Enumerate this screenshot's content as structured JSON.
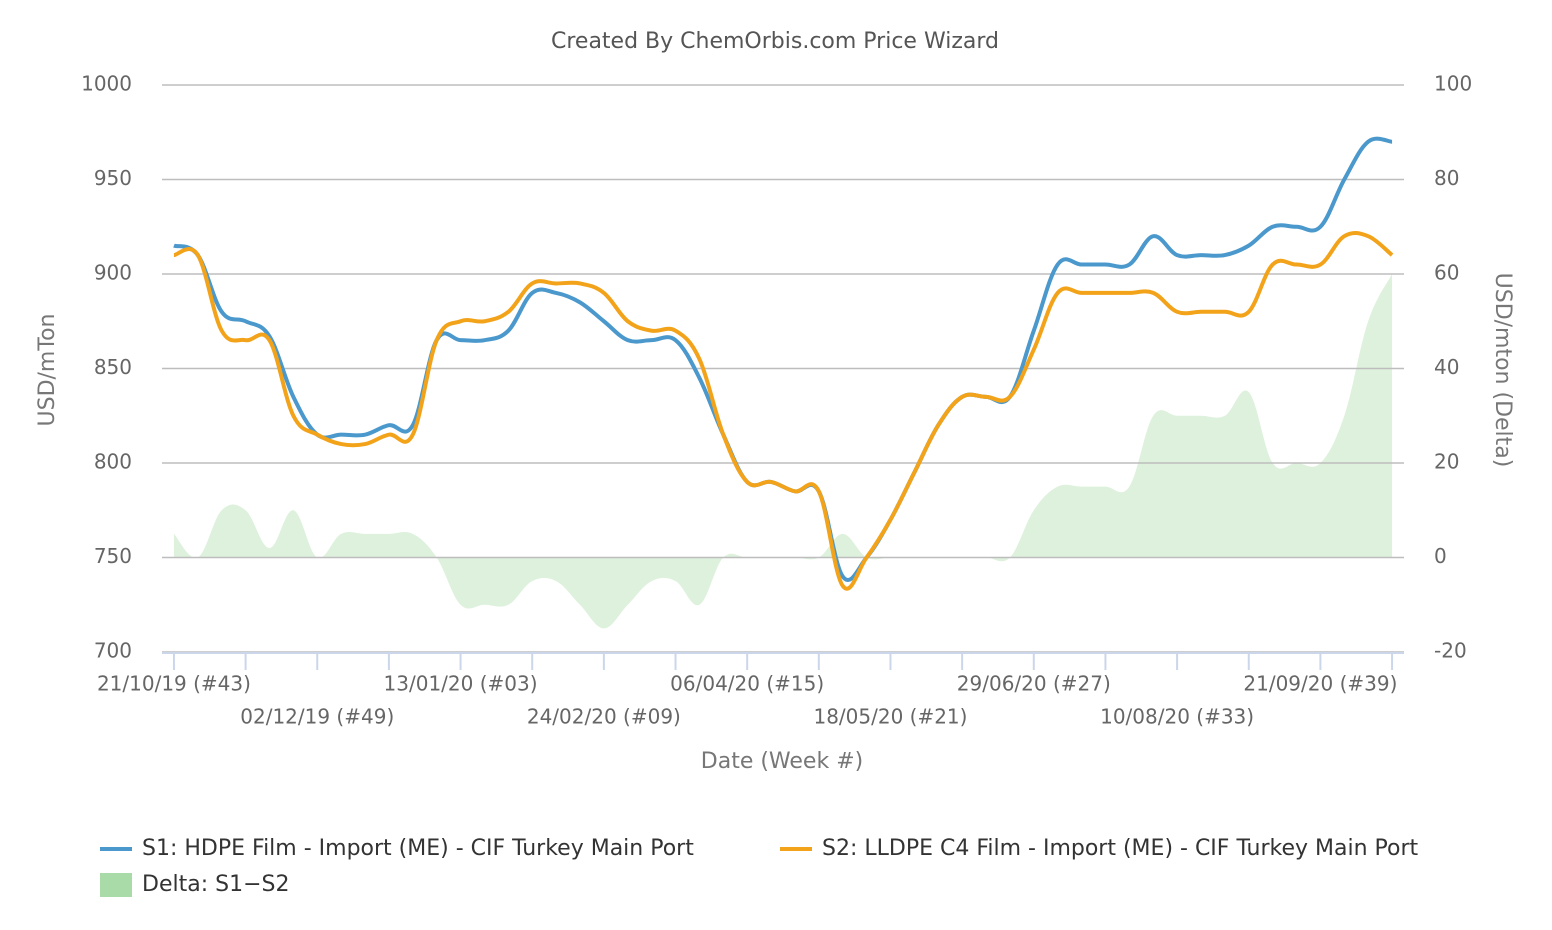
{
  "chart_data": {
    "type": "line",
    "title": "Created By ChemOrbis.com Price Wizard",
    "x_label": "Date (Week #)",
    "y_label": "USD/mTon",
    "y2_label": "USD/mton (Delta)",
    "categories": [
      "21/10/19 (#43)",
      null,
      null,
      null,
      null,
      null,
      "02/12/19 (#49)",
      null,
      null,
      null,
      null,
      null,
      "13/01/20 (#03)",
      null,
      null,
      null,
      null,
      null,
      "24/02/20 (#09)",
      null,
      null,
      null,
      null,
      null,
      "06/04/20 (#15)",
      null,
      null,
      null,
      null,
      null,
      "18/05/20 (#21)",
      null,
      null,
      null,
      null,
      null,
      "29/06/20 (#27)",
      null,
      null,
      null,
      null,
      null,
      "10/08/20 (#33)",
      null,
      null,
      null,
      null,
      null,
      "21/09/20 (#39)",
      null,
      null,
      null
    ],
    "ylim": [
      700,
      1000
    ],
    "yticks": [
      700,
      750,
      800,
      850,
      900,
      950,
      1000
    ],
    "y2lim": [
      -20,
      100
    ],
    "y2ticks": [
      -20,
      0,
      20,
      40,
      60,
      80,
      100
    ],
    "grid": true,
    "legend": "bottom",
    "series": [
      {
        "name": "S1: HDPE Film - Import (ME) - CIF Turkey Main Port",
        "color": "#4a98cc",
        "type": "line",
        "values": [
          915,
          910,
          880,
          875,
          867,
          835,
          815,
          815,
          815,
          820,
          820,
          865,
          865,
          865,
          870,
          890,
          890,
          885,
          875,
          865,
          865,
          865,
          845,
          815,
          790,
          790,
          785,
          785,
          740,
          750,
          770,
          795,
          820,
          835,
          835,
          835,
          870,
          905,
          905,
          905,
          905,
          920,
          910,
          910,
          910,
          915,
          925,
          925,
          925,
          950,
          970,
          970
        ]
      },
      {
        "name": "S2: LLDPE C4 Film - Import (ME) - CIF Turkey Main Port",
        "color": "#f2a31a",
        "type": "line",
        "values": [
          910,
          910,
          870,
          865,
          865,
          825,
          815,
          810,
          810,
          815,
          815,
          865,
          875,
          875,
          880,
          895,
          895,
          895,
          890,
          875,
          870,
          870,
          855,
          815,
          790,
          790,
          785,
          785,
          735,
          750,
          770,
          795,
          820,
          835,
          835,
          835,
          860,
          890,
          890,
          890,
          890,
          890,
          880,
          880,
          880,
          880,
          905,
          905,
          905,
          920,
          920,
          910
        ]
      },
      {
        "name": "Delta: S1−S2",
        "color": "#a9dba8",
        "type": "area",
        "axis": "y2",
        "values": [
          5,
          0,
          10,
          10,
          2,
          10,
          0,
          5,
          5,
          5,
          5,
          0,
          -10,
          -10,
          -10,
          -5,
          -5,
          -10,
          -15,
          -10,
          -5,
          -5,
          -10,
          0,
          0,
          0,
          0,
          0,
          5,
          0,
          0,
          0,
          0,
          0,
          0,
          0,
          10,
          15,
          15,
          15,
          15,
          30,
          30,
          30,
          30,
          35,
          20,
          20,
          20,
          30,
          50,
          60
        ]
      }
    ]
  }
}
